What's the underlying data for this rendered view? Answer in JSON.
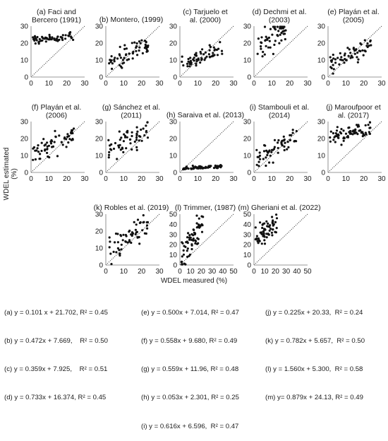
{
  "figure": {
    "ylabel": "WDEL estimated (%)",
    "xlabel": "WDEL measured (%)"
  },
  "equations": [
    [
      "(a) y = 0.101 x + 21.702, R² = 0.45",
      "(b) y = 0.472x + 7.669,    R² = 0.50",
      "(c) y = 0.359x + 7.925,    R² = 0.51",
      "(d) y = 0.733x + 16.374, R² = 0.45"
    ],
    [
      "(e) y = 0.500x + 7.014, R² = 0.47",
      "(f) y = 0.558x + 9.680, R² = 0.49",
      "(g) y = 0.559x + 11.96, R² = 0.48",
      "(h) y = 0.053x + 2.301, R² = 0.25",
      "(i) y = 0.616x + 6.596,  R² = 0.47"
    ],
    [
      "(j) y = 0.225x + 20.33,  R² = 0.24",
      "(k) y = 0.782x + 5.657,  R² = 0.50",
      "(l) y = 1.560x + 5.300,  R² = 0.58",
      "(m) y= 0.879x + 24.13, R² = 0.49"
    ]
  ],
  "chart_data": [
    {
      "type": "scatter",
      "title": "(a) Faci and Bercero (1991)",
      "xlim": [
        0,
        30
      ],
      "ylim": [
        0,
        30
      ],
      "xticks": [
        0,
        10,
        20,
        30
      ],
      "yticks": [
        0,
        10,
        20,
        30
      ],
      "slope": 0.101,
      "intercept": 21.702,
      "r2": 0.45,
      "x_range": [
        1,
        24
      ],
      "noise": 1.2,
      "n": 60,
      "reference_line": "1:1"
    },
    {
      "type": "scatter",
      "title": "(b) Montero, (1999)",
      "xlim": [
        0,
        30
      ],
      "ylim": [
        0,
        30
      ],
      "xticks": [
        0,
        10,
        20,
        30
      ],
      "yticks": [
        0,
        10,
        20,
        30
      ],
      "slope": 0.472,
      "intercept": 7.669,
      "r2": 0.5,
      "x_range": [
        1,
        24
      ],
      "noise": 3.0,
      "n": 60,
      "reference_line": "1:1"
    },
    {
      "type": "scatter",
      "title": "(c) Tarjuelo et al. (2000)",
      "xlim": [
        0,
        30
      ],
      "ylim": [
        0,
        30
      ],
      "xticks": [
        0,
        10,
        20,
        30
      ],
      "yticks": [
        0,
        10,
        20,
        30
      ],
      "slope": 0.359,
      "intercept": 7.925,
      "r2": 0.51,
      "x_range": [
        1,
        24
      ],
      "noise": 2.5,
      "n": 60,
      "reference_line": "1:1"
    },
    {
      "type": "scatter",
      "title": "(d) Dechmi et al. (2003)",
      "xlim": [
        0,
        30
      ],
      "ylim": [
        0,
        30
      ],
      "xticks": [
        0,
        10,
        20,
        30
      ],
      "yticks": [
        0,
        10,
        20,
        30
      ],
      "slope": 0.733,
      "intercept": 16.374,
      "r2": 0.45,
      "x_range": [
        1,
        18
      ],
      "noise": 4.5,
      "n": 55,
      "reference_line": "1:1"
    },
    {
      "type": "scatter",
      "title": "(e) Playán et al. (2005)",
      "xlim": [
        0,
        30
      ],
      "ylim": [
        0,
        30
      ],
      "xticks": [
        0,
        10,
        20,
        30
      ],
      "yticks": [
        0,
        10,
        20,
        30
      ],
      "slope": 0.5,
      "intercept": 7.014,
      "r2": 0.47,
      "x_range": [
        1,
        24
      ],
      "noise": 3.0,
      "n": 60,
      "reference_line": "1:1"
    },
    {
      "type": "scatter",
      "title": "(f) Playán et al. (2006)",
      "xlim": [
        0,
        30
      ],
      "ylim": [
        0,
        30
      ],
      "xticks": [
        0,
        10,
        20,
        30
      ],
      "yticks": [
        0,
        10,
        20,
        30
      ],
      "slope": 0.558,
      "intercept": 9.68,
      "r2": 0.49,
      "x_range": [
        1,
        24
      ],
      "noise": 3.2,
      "n": 60,
      "reference_line": "1:1"
    },
    {
      "type": "scatter",
      "title": "(g) Sánchez et al. (2011)",
      "xlim": [
        0,
        30
      ],
      "ylim": [
        0,
        30
      ],
      "xticks": [
        0,
        10,
        20,
        30
      ],
      "yticks": [
        0,
        10,
        20,
        30
      ],
      "slope": 0.559,
      "intercept": 11.96,
      "r2": 0.48,
      "x_range": [
        1,
        24
      ],
      "noise": 3.2,
      "n": 60,
      "reference_line": "1:1"
    },
    {
      "type": "scatter",
      "title": "(h) Saraiva et al. (2013)",
      "xlim": [
        0,
        30
      ],
      "ylim": [
        0,
        30
      ],
      "xticks": [
        0,
        10,
        20,
        30
      ],
      "yticks": [
        0,
        10,
        20,
        30
      ],
      "slope": 0.053,
      "intercept": 2.301,
      "r2": 0.25,
      "x_range": [
        1,
        24
      ],
      "noise": 0.5,
      "n": 70,
      "reference_line": "1:1"
    },
    {
      "type": "scatter",
      "title": "(i) Stambouli et al. (2014)",
      "xlim": [
        0,
        30
      ],
      "ylim": [
        0,
        30
      ],
      "xticks": [
        0,
        10,
        20,
        30
      ],
      "yticks": [
        0,
        10,
        20,
        30
      ],
      "slope": 0.616,
      "intercept": 6.596,
      "r2": 0.47,
      "x_range": [
        1,
        24
      ],
      "noise": 3.2,
      "n": 60,
      "reference_line": "1:1"
    },
    {
      "type": "scatter",
      "title": "(j) Maroufpoor et al. (2017)",
      "xlim": [
        0,
        30
      ],
      "ylim": [
        0,
        30
      ],
      "xticks": [
        0,
        10,
        20,
        30
      ],
      "yticks": [
        0,
        10,
        20,
        30
      ],
      "slope": 0.225,
      "intercept": 20.33,
      "r2": 0.24,
      "x_range": [
        1,
        24
      ],
      "noise": 2.2,
      "n": 70,
      "reference_line": "1:1"
    },
    {
      "type": "scatter",
      "title": "(k) Robles et al. (2019)",
      "xlim": [
        0,
        30
      ],
      "ylim": [
        0,
        30
      ],
      "xticks": [
        0,
        10,
        20,
        30
      ],
      "yticks": [
        0,
        10,
        20,
        30
      ],
      "slope": 0.782,
      "intercept": 5.657,
      "r2": 0.5,
      "x_range": [
        1,
        24
      ],
      "noise": 4.0,
      "n": 60,
      "reference_line": "1:1"
    },
    {
      "type": "scatter",
      "title": "(l) Trimmer, (1987)",
      "xlim": [
        0,
        50
      ],
      "ylim": [
        0,
        50
      ],
      "xticks": [
        0,
        10,
        20,
        30,
        40,
        50
      ],
      "yticks": [
        0,
        10,
        20,
        30,
        40,
        50
      ],
      "slope": 1.56,
      "intercept": 5.3,
      "r2": 0.58,
      "x_range": [
        1,
        22
      ],
      "noise": 7.0,
      "n": 65,
      "reference_line": "1:1"
    },
    {
      "type": "scatter",
      "title": "(m) Gheriani et al. (2022)",
      "xlim": [
        0,
        50
      ],
      "ylim": [
        0,
        50
      ],
      "xticks": [
        0,
        10,
        20,
        30,
        40,
        50
      ],
      "yticks": [
        0,
        10,
        20,
        30,
        40,
        50
      ],
      "slope": 0.879,
      "intercept": 24.13,
      "r2": 0.49,
      "x_range": [
        1,
        22
      ],
      "noise": 5.0,
      "n": 65,
      "reference_line": "1:1"
    }
  ]
}
